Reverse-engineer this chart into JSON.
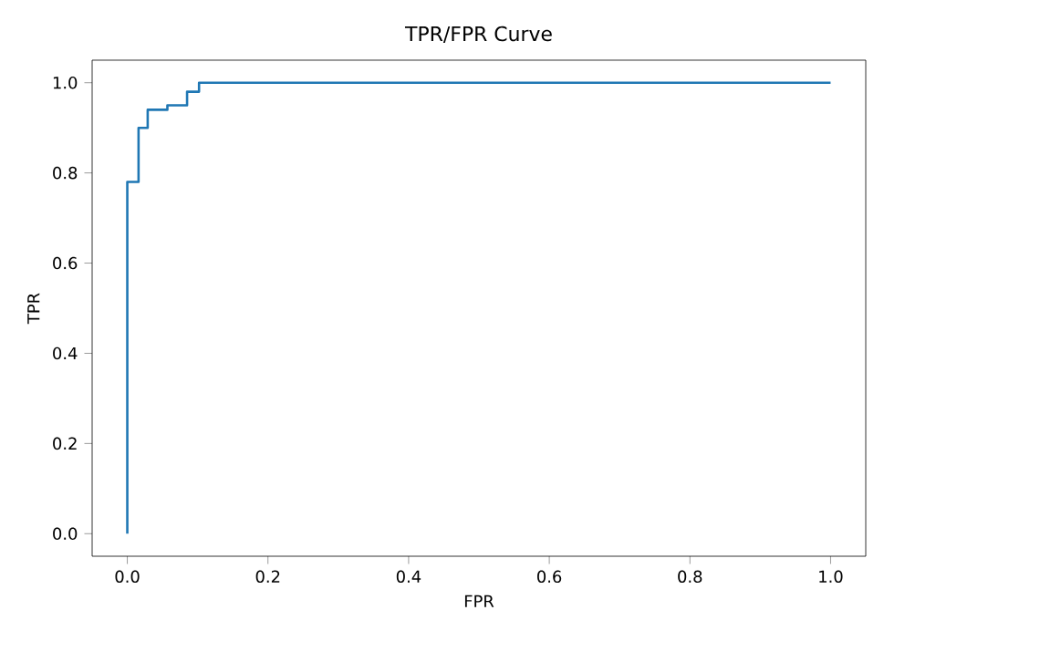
{
  "chart_data": {
    "type": "line",
    "title": "TPR/FPR Curve",
    "xlabel": "FPR",
    "ylabel": "TPR",
    "x": [
      0,
      0,
      0.016,
      0.016,
      0.029,
      0.029,
      0.057,
      0.057,
      0.085,
      0.085,
      0.102,
      0.102,
      1.0
    ],
    "series": [
      {
        "color": "#1f77b4",
        "values": [
          0,
          0.78,
          0.78,
          0.9,
          0.9,
          0.94,
          0.94,
          0.95,
          0.95,
          0.98,
          0.98,
          1.0,
          1.0
        ]
      }
    ],
    "xlim": [
      -0.05,
      1.05
    ],
    "ylim": [
      -0.05,
      1.05
    ],
    "xticks": [
      {
        "value": 0,
        "label": "0.0"
      },
      {
        "value": 0.2,
        "label": "0.2"
      },
      {
        "value": 0.4,
        "label": "0.4"
      },
      {
        "value": 0.6,
        "label": "0.6"
      },
      {
        "value": 0.8,
        "label": "0.8"
      },
      {
        "value": 1.0,
        "label": "1.0"
      }
    ],
    "yticks": [
      {
        "value": 0,
        "label": "0.0"
      },
      {
        "value": 0.2,
        "label": "0.2"
      },
      {
        "value": 0.4,
        "label": "0.4"
      },
      {
        "value": 0.6,
        "label": "0.6"
      },
      {
        "value": 0.8,
        "label": "0.8"
      },
      {
        "value": 1.0,
        "label": "1.0"
      }
    ],
    "grid": false
  }
}
